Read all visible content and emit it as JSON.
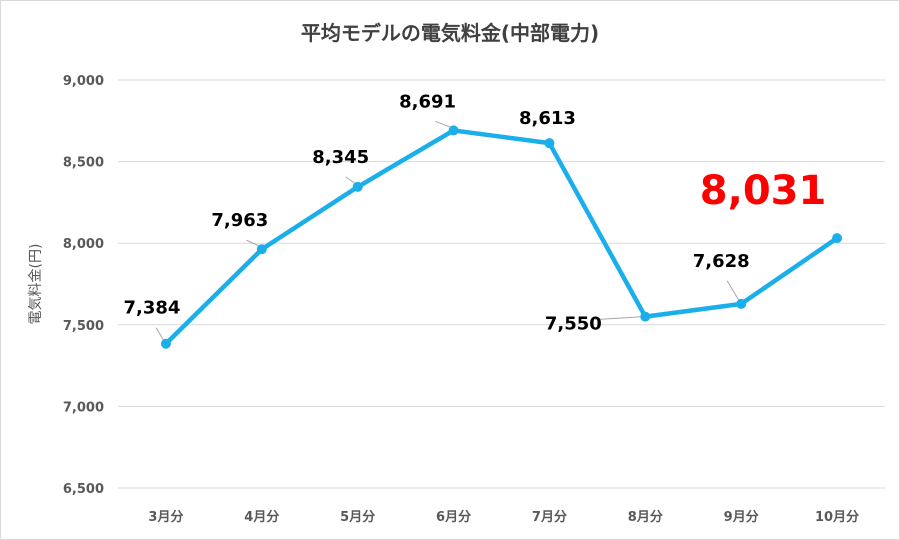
{
  "chart_data": {
    "type": "line",
    "title": "平均モデルの電気料金(中部電力)",
    "ylabel": "電気料金(円)",
    "xlabel": "",
    "categories": [
      "3月分",
      "4月分",
      "5月分",
      "6月分",
      "7月分",
      "8月分",
      "9月分",
      "10月分"
    ],
    "series": [
      {
        "values": [
          7384,
          7963,
          8345,
          8691,
          8613,
          7550,
          7628,
          8031
        ]
      }
    ],
    "data_labels": [
      "7,384",
      "7,963",
      "8,345",
      "8,691",
      "8,613",
      "7,550",
      "7,628",
      "8,031"
    ],
    "highlight_index": 7,
    "ylim": [
      6500,
      9000
    ],
    "yticks": [
      6500,
      7000,
      7500,
      8000,
      8500,
      9000
    ],
    "ytick_labels": [
      "6,500",
      "7,000",
      "7,500",
      "8,000",
      "8,500",
      "9,000"
    ],
    "grid": true,
    "colors": {
      "line": "#1aaeea",
      "highlight": "#ff0000",
      "grid": "#d9d9d9"
    }
  }
}
